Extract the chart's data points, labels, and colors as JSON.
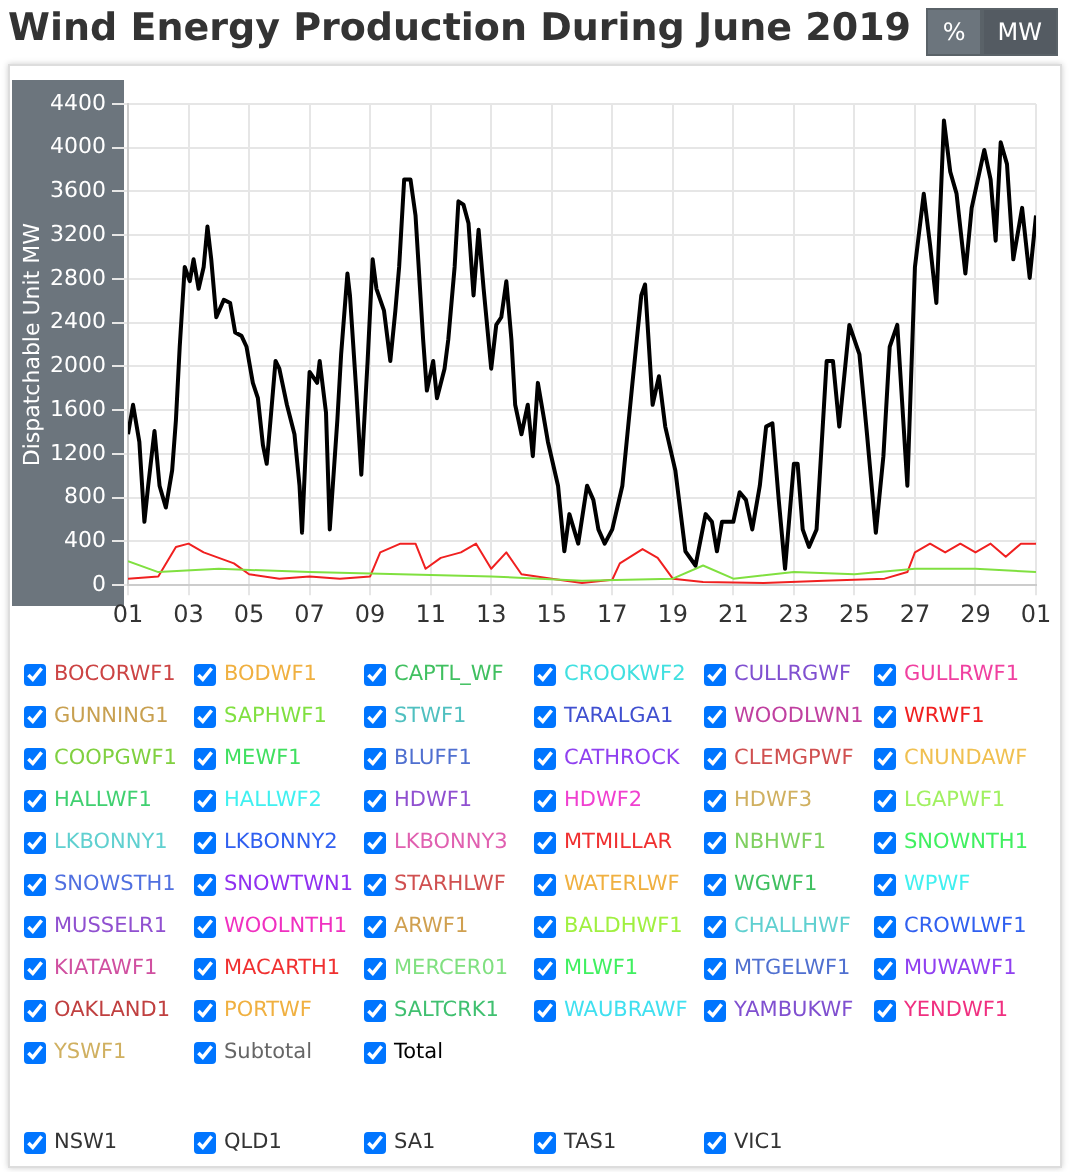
{
  "chart_data": {
    "type": "line",
    "title": "Wind Energy Production During June 2019",
    "ylabel": "Dispatchable Unit MW",
    "annotations": [
      "%",
      "MW",
      "NSW1",
      "QLD1",
      "SA1",
      "TAS1",
      "VIC1"
    ],
    "xlim": [
      "2019-06-01",
      "2019-07-01"
    ],
    "xticks": [
      {
        "value": "2019-06-01",
        "label": "01"
      },
      {
        "value": "2019-06-03",
        "label": "03"
      },
      {
        "value": "2019-06-05",
        "label": "05"
      },
      {
        "value": "2019-06-07",
        "label": "07"
      },
      {
        "value": "2019-06-09",
        "label": "09"
      },
      {
        "value": "2019-06-11",
        "label": "11"
      },
      {
        "value": "2019-06-13",
        "label": "13"
      },
      {
        "value": "2019-06-15",
        "label": "15"
      },
      {
        "value": "2019-06-17",
        "label": "17"
      },
      {
        "value": "2019-06-19",
        "label": "19"
      },
      {
        "value": "2019-06-21",
        "label": "21"
      },
      {
        "value": "2019-06-23",
        "label": "23"
      },
      {
        "value": "2019-06-25",
        "label": "25"
      },
      {
        "value": "2019-06-27",
        "label": "27"
      },
      {
        "value": "2019-06-29",
        "label": "29"
      },
      {
        "value": "2019-07-01",
        "label": "01"
      }
    ],
    "ylim": [
      0,
      4400
    ],
    "yticks": [
      0,
      400,
      800,
      1200,
      1600,
      2000,
      2400,
      2800,
      3200,
      3600,
      4000,
      4400
    ],
    "grid": true,
    "legend": "bottom",
    "marker": "none",
    "line_style": "solid",
    "series": [
      {
        "name": "BOCORWF1",
        "color": "#cc4444"
      },
      {
        "name": "BODWF1",
        "color": "#f0b040"
      },
      {
        "name": "CAPTL_WF",
        "color": "#40c060"
      },
      {
        "name": "CROOKWF2",
        "color": "#40e0e0"
      },
      {
        "name": "CULLRGWF",
        "color": "#8050d0"
      },
      {
        "name": "GULLRWF1",
        "color": "#f040a0"
      },
      {
        "name": "GUNNING1",
        "color": "#c8a050"
      },
      {
        "name": "SAPHWF1",
        "color": "#80e040",
        "x": [
          "2019-06-01",
          "2019-06-02",
          "2019-06-04",
          "2019-06-07",
          "2019-06-10",
          "2019-06-13",
          "2019-06-16",
          "2019-06-19",
          "2019-06-20",
          "2019-06-21",
          "2019-06-23",
          "2019-06-25",
          "2019-06-27",
          "2019-06-29",
          "2019-07-01"
        ],
        "values": [
          220,
          120,
          150,
          120,
          100,
          80,
          40,
          60,
          180,
          60,
          120,
          100,
          150,
          150,
          120
        ]
      },
      {
        "name": "STWF1",
        "color": "#50c0c0"
      },
      {
        "name": "TARALGA1",
        "color": "#4050d0"
      },
      {
        "name": "WOODLWN1",
        "color": "#c040a0"
      },
      {
        "name": "WRWF1",
        "color": "#f02020",
        "x": [
          "2019-06-01",
          "2019-06-02",
          "2019-06-02T14:00",
          "2019-06-03",
          "2019-06-03T12:00",
          "2019-06-04",
          "2019-06-04T12:00",
          "2019-06-05",
          "2019-06-06",
          "2019-06-07",
          "2019-06-08",
          "2019-06-09",
          "2019-06-09T08:00",
          "2019-06-10",
          "2019-06-10T12:00",
          "2019-06-10T20:00",
          "2019-06-11T08:00",
          "2019-06-12",
          "2019-06-12T12:00",
          "2019-06-13",
          "2019-06-13T12:00",
          "2019-06-14",
          "2019-06-15",
          "2019-06-16",
          "2019-06-17",
          "2019-06-17T06:00",
          "2019-06-18",
          "2019-06-18T12:00",
          "2019-06-19",
          "2019-06-20",
          "2019-06-22",
          "2019-06-24",
          "2019-06-26",
          "2019-06-26T18:00",
          "2019-06-27",
          "2019-06-27T12:00",
          "2019-06-28",
          "2019-06-28T12:00",
          "2019-06-29",
          "2019-06-29T12:00",
          "2019-06-30",
          "2019-06-30T12:00",
          "2019-07-01"
        ],
        "values": [
          60,
          80,
          350,
          380,
          300,
          250,
          200,
          100,
          60,
          80,
          60,
          80,
          300,
          380,
          380,
          150,
          250,
          300,
          380,
          150,
          300,
          100,
          60,
          20,
          50,
          200,
          330,
          250,
          60,
          30,
          20,
          40,
          60,
          120,
          300,
          380,
          300,
          380,
          300,
          380,
          260,
          380,
          380
        ]
      },
      {
        "name": "COOPGWF1",
        "color": "#80d040"
      },
      {
        "name": "MEWF1",
        "color": "#40e060"
      },
      {
        "name": "BLUFF1",
        "color": "#5070d0"
      },
      {
        "name": "CATHROCK",
        "color": "#9040f0"
      },
      {
        "name": "CLEMGPWF",
        "color": "#d05050"
      },
      {
        "name": "CNUNDAWF",
        "color": "#f0c050"
      },
      {
        "name": "HALLWF1",
        "color": "#40d070"
      },
      {
        "name": "HALLWF2",
        "color": "#40f0f0"
      },
      {
        "name": "HDWF1",
        "color": "#9050d0"
      },
      {
        "name": "HDWF2",
        "color": "#f040d0"
      },
      {
        "name": "HDWF3",
        "color": "#d0b060"
      },
      {
        "name": "LGAPWF1",
        "color": "#a0f060"
      },
      {
        "name": "LKBONNY1",
        "color": "#60d0d0"
      },
      {
        "name": "LKBONNY2",
        "color": "#3060f0"
      },
      {
        "name": "LKBONNY3",
        "color": "#e060b0"
      },
      {
        "name": "MTMILLAR",
        "color": "#f03030"
      },
      {
        "name": "NBHWF1",
        "color": "#80d060"
      },
      {
        "name": "SNOWNTH1",
        "color": "#40f060"
      },
      {
        "name": "SNOWSTH1",
        "color": "#5070e0"
      },
      {
        "name": "SNOWTWN1",
        "color": "#9030f0"
      },
      {
        "name": "STARHLWF",
        "color": "#d05050"
      },
      {
        "name": "WATERLWF",
        "color": "#f0b040"
      },
      {
        "name": "WGWF1",
        "color": "#40c060"
      },
      {
        "name": "WPWF",
        "color": "#40f0f0"
      },
      {
        "name": "MUSSELR1",
        "color": "#9050d0"
      },
      {
        "name": "WOOLNTH1",
        "color": "#f030c0"
      },
      {
        "name": "ARWF1",
        "color": "#d0a050"
      },
      {
        "name": "BALDHWF1",
        "color": "#a0f040"
      },
      {
        "name": "CHALLHWF",
        "color": "#60d0d0"
      },
      {
        "name": "CROWLWF1",
        "color": "#3060f0"
      },
      {
        "name": "KIATAWF1",
        "color": "#d050a0"
      },
      {
        "name": "MACARTH1",
        "color": "#f03030"
      },
      {
        "name": "MERCER01",
        "color": "#80e080"
      },
      {
        "name": "MLWF1",
        "color": "#40f060"
      },
      {
        "name": "MTGELWF1",
        "color": "#5070d0"
      },
      {
        "name": "MUWAWF1",
        "color": "#9040f0"
      },
      {
        "name": "OAKLAND1",
        "color": "#c04040"
      },
      {
        "name": "PORTWF",
        "color": "#f0b040"
      },
      {
        "name": "SALTCRK1",
        "color": "#40c070"
      },
      {
        "name": "WAUBRAWF",
        "color": "#40e0f0"
      },
      {
        "name": "YAMBUKWF",
        "color": "#8050d0"
      },
      {
        "name": "YENDWF1",
        "color": "#f03080"
      },
      {
        "name": "YSWF1",
        "color": "#d0b060"
      },
      {
        "name": "Subtotal",
        "color": "#666666"
      },
      {
        "name": "Total",
        "color": "#000000",
        "x": [
          "2019-06-01T00:00",
          "2019-06-01T04:00",
          "2019-06-01T09:00",
          "2019-06-01T13:00",
          "2019-06-01T16:00",
          "2019-06-01T21:00",
          "2019-06-02T01:00",
          "2019-06-02T06:00",
          "2019-06-02T11:00",
          "2019-06-02T14:00",
          "2019-06-02T17:00",
          "2019-06-02T21:00",
          "2019-06-03T01:00",
          "2019-06-03T04:00",
          "2019-06-03T08:00",
          "2019-06-03T12:00",
          "2019-06-03T15:00",
          "2019-06-03T18:00",
          "2019-06-03T22:00",
          "2019-06-04T04:00",
          "2019-06-04T09:00",
          "2019-06-04T13:00",
          "2019-06-04T18:00",
          "2019-06-04T22:00",
          "2019-06-05T03:00",
          "2019-06-05T07:00",
          "2019-06-05T11:00",
          "2019-06-05T14:00",
          "2019-06-05T17:00",
          "2019-06-05T21:00",
          "2019-06-06T00:00",
          "2019-06-06T06:00",
          "2019-06-06T12:00",
          "2019-06-06T16:00",
          "2019-06-06T18:00",
          "2019-06-06T22:00",
          "2019-06-07T00:00",
          "2019-06-07T06:00",
          "2019-06-07T08:00",
          "2019-06-07T13:00",
          "2019-06-07T16:00",
          "2019-06-07T22:00",
          "2019-06-08T01:00",
          "2019-06-08T06:00",
          "2019-06-08T08:00",
          "2019-06-08T13:00",
          "2019-06-08T17:00",
          "2019-06-08T22:00",
          "2019-06-09T02:00",
          "2019-06-09T05:00",
          "2019-06-09T11:00",
          "2019-06-09T16:00",
          "2019-06-09T20:00",
          "2019-06-09T23:00",
          "2019-06-10T03:00",
          "2019-06-10T08:00",
          "2019-06-10T12:00",
          "2019-06-10T18:00",
          "2019-06-10T21:00",
          "2019-06-11T02:00",
          "2019-06-11T05:00",
          "2019-06-11T11:00",
          "2019-06-11T14:00",
          "2019-06-11T19:00",
          "2019-06-11T22:00",
          "2019-06-12T02:00",
          "2019-06-12T06:00",
          "2019-06-12T10:00",
          "2019-06-12T14:00",
          "2019-06-12T18:00",
          "2019-06-13T00:00",
          "2019-06-13T04:00",
          "2019-06-13T08:00",
          "2019-06-13T12:00",
          "2019-06-13T16:00",
          "2019-06-13T19:00",
          "2019-06-14T00:00",
          "2019-06-14T05:00",
          "2019-06-14T09:00",
          "2019-06-14T13:00",
          "2019-06-14T21:00",
          "2019-06-15T05:00",
          "2019-06-15T10:00",
          "2019-06-15T14:00",
          "2019-06-15T21:00",
          "2019-06-16T04:00",
          "2019-06-16T09:00",
          "2019-06-16T13:00",
          "2019-06-16T18:00",
          "2019-06-17T00:00",
          "2019-06-17T08:00",
          "2019-06-17T16:00",
          "2019-06-17T23:00",
          "2019-06-18T02:00",
          "2019-06-18T08:00",
          "2019-06-18T13:00",
          "2019-06-18T18:00",
          "2019-06-19T02:00",
          "2019-06-19T10:00",
          "2019-06-19T18:00",
          "2019-06-20T02:00",
          "2019-06-20T07:00",
          "2019-06-20T11:00",
          "2019-06-20T15:00",
          "2019-06-21T00:00",
          "2019-06-21T05:00",
          "2019-06-21T10:00",
          "2019-06-21T15:00",
          "2019-06-21T21:00",
          "2019-06-22T02:00",
          "2019-06-22T07:00",
          "2019-06-22T12:00",
          "2019-06-22T17:00",
          "2019-06-23T00:00",
          "2019-06-23T03:00",
          "2019-06-23T07:00",
          "2019-06-23T12:00",
          "2019-06-23T18:00",
          "2019-06-24T02:00",
          "2019-06-24T07:00",
          "2019-06-24T12:00",
          "2019-06-24T20:00",
          "2019-06-25T04:00",
          "2019-06-25T10:00",
          "2019-06-25T17:00",
          "2019-06-25T23:00",
          "2019-06-26T04:00",
          "2019-06-26T10:00",
          "2019-06-26T18:00",
          "2019-06-27T00:00",
          "2019-06-27T07:00",
          "2019-06-27T12:00",
          "2019-06-27T17:00",
          "2019-06-27T23:00",
          "2019-06-28T04:00",
          "2019-06-28T09:00",
          "2019-06-28T16:00",
          "2019-06-28T21:00",
          "2019-06-29T07:00",
          "2019-06-29T12:00",
          "2019-06-29T16:00",
          "2019-06-29T20:00",
          "2019-06-30T01:00",
          "2019-06-30T06:00",
          "2019-06-30T13:00",
          "2019-06-30T19:00",
          "2019-07-01T00:00"
        ],
        "values": [
          1380,
          1650,
          1310,
          580,
          910,
          1410,
          910,
          710,
          1050,
          1510,
          2180,
          2910,
          2780,
          2980,
          2710,
          2910,
          3280,
          2980,
          2450,
          2610,
          2580,
          2310,
          2280,
          2180,
          1850,
          1710,
          1280,
          1110,
          1510,
          2050,
          1980,
          1650,
          1380,
          910,
          480,
          1510,
          1950,
          1850,
          2050,
          1580,
          510,
          1510,
          2110,
          2850,
          2650,
          1780,
          1010,
          2050,
          2980,
          2710,
          2510,
          2050,
          2510,
          2910,
          3710,
          3710,
          3380,
          2250,
          1780,
          2050,
          1710,
          1980,
          2250,
          2910,
          3510,
          3480,
          3310,
          2650,
          3250,
          2710,
          1980,
          2380,
          2450,
          2780,
          2250,
          1650,
          1380,
          1650,
          1180,
          1850,
          1310,
          910,
          310,
          650,
          380,
          910,
          780,
          510,
          380,
          510,
          910,
          1850,
          2650,
          2750,
          1650,
          1910,
          1450,
          1050,
          310,
          180,
          650,
          580,
          310,
          580,
          580,
          850,
          780,
          510,
          910,
          1450,
          1480,
          780,
          150,
          1110,
          1110,
          510,
          350,
          510,
          2050,
          2050,
          1450,
          2380,
          2110,
          1380,
          480,
          1180,
          2180,
          2380,
          910,
          2910,
          3580,
          3110,
          2580,
          4250,
          3780,
          3580,
          2850,
          3450,
          3980,
          3710,
          3150,
          4050,
          3850,
          2980,
          3450,
          2810,
          3380
        ]
      }
    ]
  }
}
